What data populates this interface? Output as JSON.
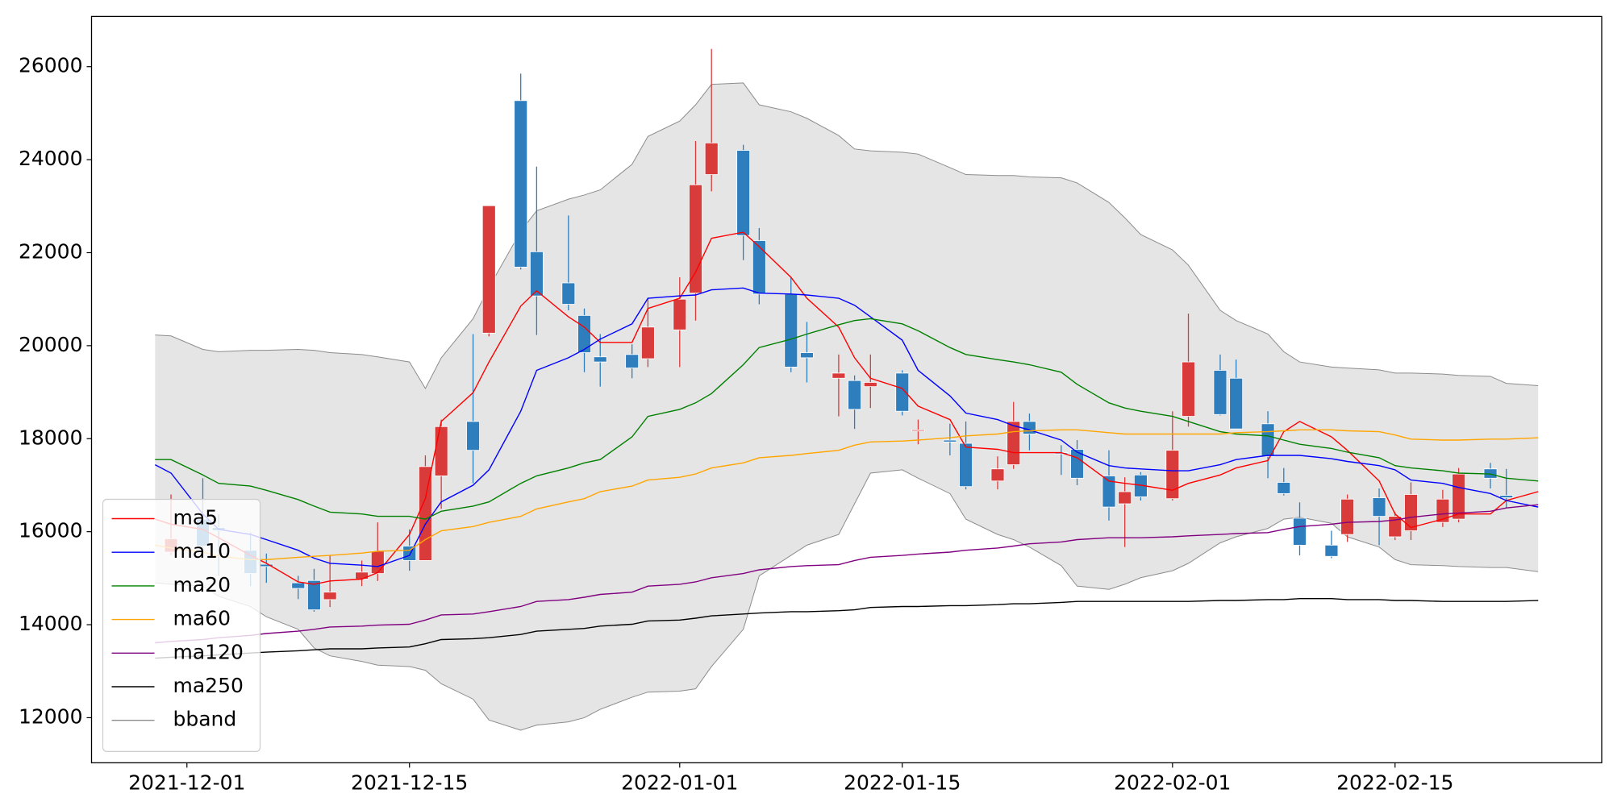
{
  "chart_data": {
    "type": "candlestick",
    "x": [
      "2021-11-29",
      "2021-11-30",
      "2021-12-02",
      "2021-12-03",
      "2021-12-05",
      "2021-12-06",
      "2021-12-08",
      "2021-12-09",
      "2021-12-10",
      "2021-12-12",
      "2021-12-13",
      "2021-12-15",
      "2021-12-16",
      "2021-12-17",
      "2021-12-19",
      "2021-12-20",
      "2021-12-22",
      "2021-12-23",
      "2021-12-25",
      "2021-12-26",
      "2021-12-27",
      "2021-12-29",
      "2021-12-30",
      "2022-01-01",
      "2022-01-02",
      "2022-01-03",
      "2022-01-05",
      "2022-01-06",
      "2022-01-08",
      "2022-01-09",
      "2022-01-11",
      "2022-01-12",
      "2022-01-13",
      "2022-01-15",
      "2022-01-16",
      "2022-01-18",
      "2022-01-19",
      "2022-01-21",
      "2022-01-22",
      "2022-01-23",
      "2022-01-25",
      "2022-01-26",
      "2022-01-28",
      "2022-01-29",
      "2022-01-30",
      "2022-02-01",
      "2022-02-02",
      "2022-02-04",
      "2022-02-05",
      "2022-02-07",
      "2022-02-08",
      "2022-02-09",
      "2022-02-11",
      "2022-02-12",
      "2022-02-14",
      "2022-02-15",
      "2022-02-16",
      "2022-02-18",
      "2022-02-19",
      "2022-02-21",
      "2022-02-22",
      "2022-02-24"
    ],
    "open": [
      null,
      15560,
      16270,
      16090,
      15600,
      15300,
      14900,
      14950,
      14540,
      14980,
      15100,
      15690,
      15380,
      17200,
      18370,
      20270,
      25270,
      22020,
      21350,
      20650,
      19760,
      19810,
      19720,
      20340,
      21130,
      23680,
      24200,
      22260,
      21110,
      19850,
      19300,
      19250,
      19120,
      19410,
      18170,
      17970,
      17900,
      17090,
      17440,
      18370,
      17700,
      17770,
      17200,
      16600,
      17220,
      16710,
      18480,
      19470,
      19300,
      18320,
      17060,
      16290,
      15710,
      15940,
      16730,
      15890,
      16020,
      16200,
      16270,
      17350,
      16780,
      null
    ],
    "high": [
      null,
      16800,
      17150,
      16380,
      15980,
      15530,
      15050,
      15200,
      15500,
      15380,
      16200,
      16050,
      17640,
      18410,
      20250,
      23010,
      25850,
      23850,
      22800,
      20800,
      20250,
      20030,
      21020,
      21470,
      24400,
      26380,
      24320,
      22530,
      21470,
      20510,
      19810,
      19360,
      19810,
      19470,
      18410,
      18320,
      18370,
      17620,
      18790,
      18540,
      17860,
      17970,
      17750,
      17170,
      17280,
      18590,
      20690,
      19810,
      19700,
      18590,
      17370,
      16630,
      16020,
      16800,
      16930,
      16420,
      17060,
      16900,
      17370,
      17480,
      17350,
      null
    ],
    "low": [
      null,
      15500,
      15490,
      15050,
      14830,
      14900,
      14550,
      14280,
      14380,
      14830,
      14940,
      15160,
      15380,
      16490,
      17040,
      20200,
      21640,
      20230,
      20760,
      19430,
      19120,
      19300,
      19540,
      19540,
      20540,
      23320,
      21840,
      20890,
      19430,
      19210,
      18480,
      18210,
      18660,
      18500,
      17880,
      17640,
      16910,
      16910,
      17350,
      17750,
      17220,
      17000,
      16240,
      15670,
      16670,
      16670,
      18260,
      18500,
      18210,
      17150,
      16780,
      15490,
      15430,
      15780,
      15710,
      15820,
      15820,
      16100,
      16200,
      16930,
      16510,
      null
    ],
    "close": [
      null,
      15850,
      15690,
      16020,
      15100,
      15250,
      14780,
      14320,
      14700,
      15130,
      15580,
      15380,
      17400,
      18260,
      17750,
      23010,
      21690,
      21070,
      20890,
      19850,
      19650,
      19520,
      20400,
      21000,
      23460,
      24360,
      22370,
      21110,
      19540,
      19740,
      19410,
      18630,
      19210,
      18590,
      18190,
      17930,
      16970,
      17350,
      18370,
      18100,
      17680,
      17150,
      16530,
      16860,
      16750,
      17750,
      19650,
      18520,
      18210,
      17620,
      16820,
      15710,
      15470,
      16700,
      16330,
      16330,
      16800,
      16700,
      17240,
      17150,
      16730,
      null
    ],
    "up_color": "#d93b3b",
    "down_color": "#2e7ebe",
    "series": [
      {
        "name": "ma5",
        "color": "#ff0000",
        "values": [
          16270,
          16160,
          16050,
          15870,
          15490,
          15320,
          14920,
          14870,
          14940,
          14980,
          15120,
          15940,
          16710,
          18370,
          18990,
          19650,
          20850,
          21180,
          20620,
          20400,
          20070,
          20070,
          20800,
          21020,
          21580,
          22310,
          22440,
          22130,
          21470,
          21020,
          20400,
          19740,
          19300,
          19080,
          18700,
          18410,
          17820,
          17770,
          17700,
          17700,
          17700,
          17590,
          17090,
          17040,
          17000,
          16890,
          17040,
          17220,
          17370,
          17530,
          18150,
          18370,
          18040,
          17750,
          17090,
          16380,
          16090,
          16270,
          16380,
          16380,
          16670,
          16860
        ]
      },
      {
        "name": "ma10",
        "color": "#0000ff",
        "values": [
          17440,
          17260,
          16380,
          16050,
          15940,
          15830,
          15600,
          15430,
          15320,
          15280,
          15250,
          15490,
          16160,
          16640,
          17000,
          17330,
          18590,
          19470,
          19740,
          19920,
          20140,
          20470,
          21020,
          21070,
          21090,
          21200,
          21240,
          21130,
          21110,
          21090,
          21020,
          20870,
          20620,
          20120,
          19470,
          18920,
          18550,
          18410,
          18280,
          18190,
          17970,
          17710,
          17420,
          17370,
          17350,
          17310,
          17310,
          17440,
          17550,
          17640,
          17640,
          17640,
          17570,
          17510,
          17420,
          17330,
          17110,
          17040,
          16950,
          16820,
          16670,
          16530
        ]
      },
      {
        "name": "ma20",
        "color": "#008000",
        "values": [
          17550,
          17550,
          17220,
          17040,
          16980,
          16890,
          16690,
          16550,
          16420,
          16380,
          16330,
          16330,
          16270,
          16440,
          16550,
          16640,
          17040,
          17200,
          17370,
          17480,
          17550,
          18040,
          18480,
          18630,
          18770,
          18970,
          19590,
          19960,
          20140,
          20250,
          20450,
          20540,
          20580,
          20470,
          20320,
          19960,
          19810,
          19700,
          19650,
          19590,
          19430,
          19170,
          18770,
          18660,
          18590,
          18480,
          18370,
          18150,
          18100,
          18060,
          17970,
          17880,
          17790,
          17710,
          17590,
          17420,
          17370,
          17310,
          17260,
          17240,
          17150,
          17090
        ]
      },
      {
        "name": "ma60",
        "color": "#ffa500",
        "values": [
          15710,
          15650,
          15560,
          15470,
          15400,
          15400,
          15450,
          15470,
          15490,
          15540,
          15580,
          15600,
          15830,
          16020,
          16110,
          16200,
          16330,
          16490,
          16640,
          16710,
          16860,
          16980,
          17110,
          17170,
          17240,
          17370,
          17480,
          17590,
          17640,
          17680,
          17750,
          17860,
          17930,
          17950,
          17970,
          18020,
          18060,
          18100,
          18150,
          18170,
          18190,
          18190,
          18130,
          18100,
          18100,
          18100,
          18100,
          18100,
          18130,
          18150,
          18170,
          18190,
          18190,
          18170,
          18150,
          18080,
          17990,
          17970,
          17970,
          17990,
          17990,
          18020
        ]
      },
      {
        "name": "ma120",
        "color": "#800080",
        "values": [
          13610,
          13640,
          13680,
          13720,
          13770,
          13810,
          13860,
          13900,
          13950,
          13970,
          13990,
          14010,
          14100,
          14210,
          14230,
          14280,
          14390,
          14500,
          14540,
          14590,
          14650,
          14700,
          14830,
          14870,
          14920,
          15010,
          15100,
          15180,
          15250,
          15270,
          15290,
          15380,
          15450,
          15490,
          15520,
          15560,
          15600,
          15650,
          15690,
          15740,
          15780,
          15830,
          15870,
          15870,
          15870,
          15890,
          15910,
          15940,
          15960,
          15980,
          16050,
          16110,
          16160,
          16200,
          16220,
          16250,
          16310,
          16380,
          16400,
          16440,
          16510,
          16580
        ]
      },
      {
        "name": "ma250",
        "color": "#000000",
        "values": [
          13280,
          13300,
          13330,
          13350,
          13390,
          13410,
          13440,
          13460,
          13480,
          13480,
          13500,
          13520,
          13590,
          13680,
          13700,
          13720,
          13790,
          13860,
          13900,
          13920,
          13970,
          14010,
          14080,
          14100,
          14140,
          14190,
          14230,
          14250,
          14280,
          14280,
          14300,
          14320,
          14370,
          14390,
          14390,
          14410,
          14410,
          14430,
          14450,
          14450,
          14480,
          14500,
          14500,
          14500,
          14500,
          14500,
          14500,
          14520,
          14520,
          14540,
          14540,
          14560,
          14560,
          14540,
          14540,
          14520,
          14520,
          14500,
          14500,
          14500,
          14500,
          14520
        ]
      }
    ],
    "band": {
      "name": "bband",
      "color": "#8c8c8c",
      "fill": "#e5e5e5",
      "upper": [
        20230,
        20210,
        19920,
        19870,
        19900,
        19900,
        19920,
        19900,
        19850,
        19810,
        19760,
        19650,
        19080,
        19740,
        20580,
        21250,
        22460,
        22900,
        23150,
        23240,
        23350,
        23900,
        24500,
        24830,
        25180,
        25620,
        25650,
        25180,
        25030,
        24890,
        24520,
        24230,
        24190,
        24160,
        24120,
        23830,
        23680,
        23660,
        23660,
        23630,
        23610,
        23500,
        23080,
        22750,
        22390,
        22060,
        21730,
        20760,
        20540,
        20250,
        19870,
        19650,
        19540,
        19520,
        19480,
        19410,
        19410,
        19390,
        19360,
        19340,
        19190,
        19140
      ],
      "lower": [
        14900,
        14870,
        14830,
        14610,
        14390,
        14170,
        13900,
        13500,
        13330,
        13210,
        13130,
        13100,
        13020,
        12730,
        12400,
        11950,
        11730,
        11840,
        11910,
        12000,
        12180,
        12440,
        12550,
        12570,
        12620,
        13100,
        13900,
        15050,
        15490,
        15710,
        15940,
        16600,
        17260,
        17330,
        17150,
        16820,
        16270,
        15940,
        15830,
        15670,
        15270,
        14830,
        14760,
        14870,
        15010,
        15160,
        15320,
        15760,
        15890,
        16070,
        16270,
        16310,
        16180,
        15890,
        15670,
        15400,
        15290,
        15270,
        15250,
        15230,
        15230,
        15140
      ]
    },
    "xlim": [
      "2021-11-25",
      "2022-02-28"
    ],
    "xticks": [
      "2021-12-01",
      "2021-12-15",
      "2022-01-01",
      "2022-01-15",
      "2022-02-01",
      "2022-02-15"
    ],
    "ylim": [
      11030,
      27080
    ],
    "yticks": [
      12000,
      14000,
      16000,
      18000,
      20000,
      22000,
      24000,
      26000
    ],
    "grid": false,
    "legend": "lower left"
  }
}
